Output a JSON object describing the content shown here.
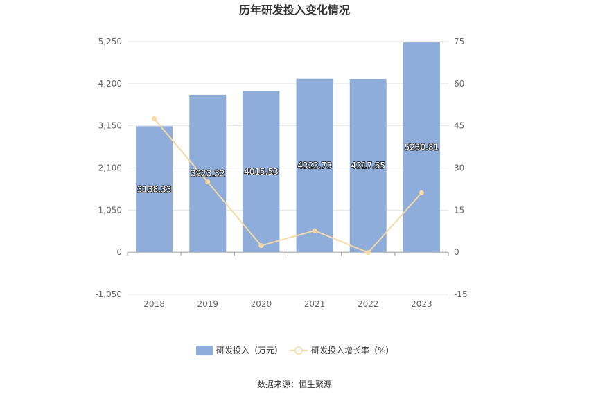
{
  "chart_data": {
    "type": "bar",
    "title": "历年研发投入变化情况",
    "source": "数据来源：恒生聚源",
    "categories": [
      "2018",
      "2019",
      "2020",
      "2021",
      "2022",
      "2023"
    ],
    "series": [
      {
        "name": "研发投入（万元）",
        "type": "bar",
        "axis": "left",
        "values": [
          3138.33,
          3923.32,
          4015.53,
          4323.73,
          4317.65,
          5230.81
        ],
        "labels": [
          "3138.33",
          "3923.32",
          "4015.53",
          "4323.73",
          "4317.65",
          "5230.81"
        ],
        "color": "#8eaddb"
      },
      {
        "name": "研发投入增长率（%）",
        "type": "line",
        "axis": "right",
        "values": [
          47.5,
          25.0,
          2.35,
          7.68,
          -0.14,
          21.15
        ],
        "color": "#f8d9a3"
      }
    ],
    "y_left": {
      "min": -1050,
      "max": 5250,
      "ticks": [
        -1050,
        0,
        1050,
        2100,
        3150,
        4200,
        5250
      ],
      "tick_labels": [
        "-1,050",
        "0",
        "1,050",
        "2,100",
        "3,150",
        "4,200",
        "5,250"
      ]
    },
    "y_right": {
      "min": -15,
      "max": 75,
      "ticks": [
        -15,
        0,
        15,
        30,
        45,
        60,
        75
      ],
      "tick_labels": [
        "-15",
        "0",
        "15",
        "30",
        "45",
        "60",
        "75"
      ]
    },
    "grid": true,
    "legend_position": "bottom"
  }
}
